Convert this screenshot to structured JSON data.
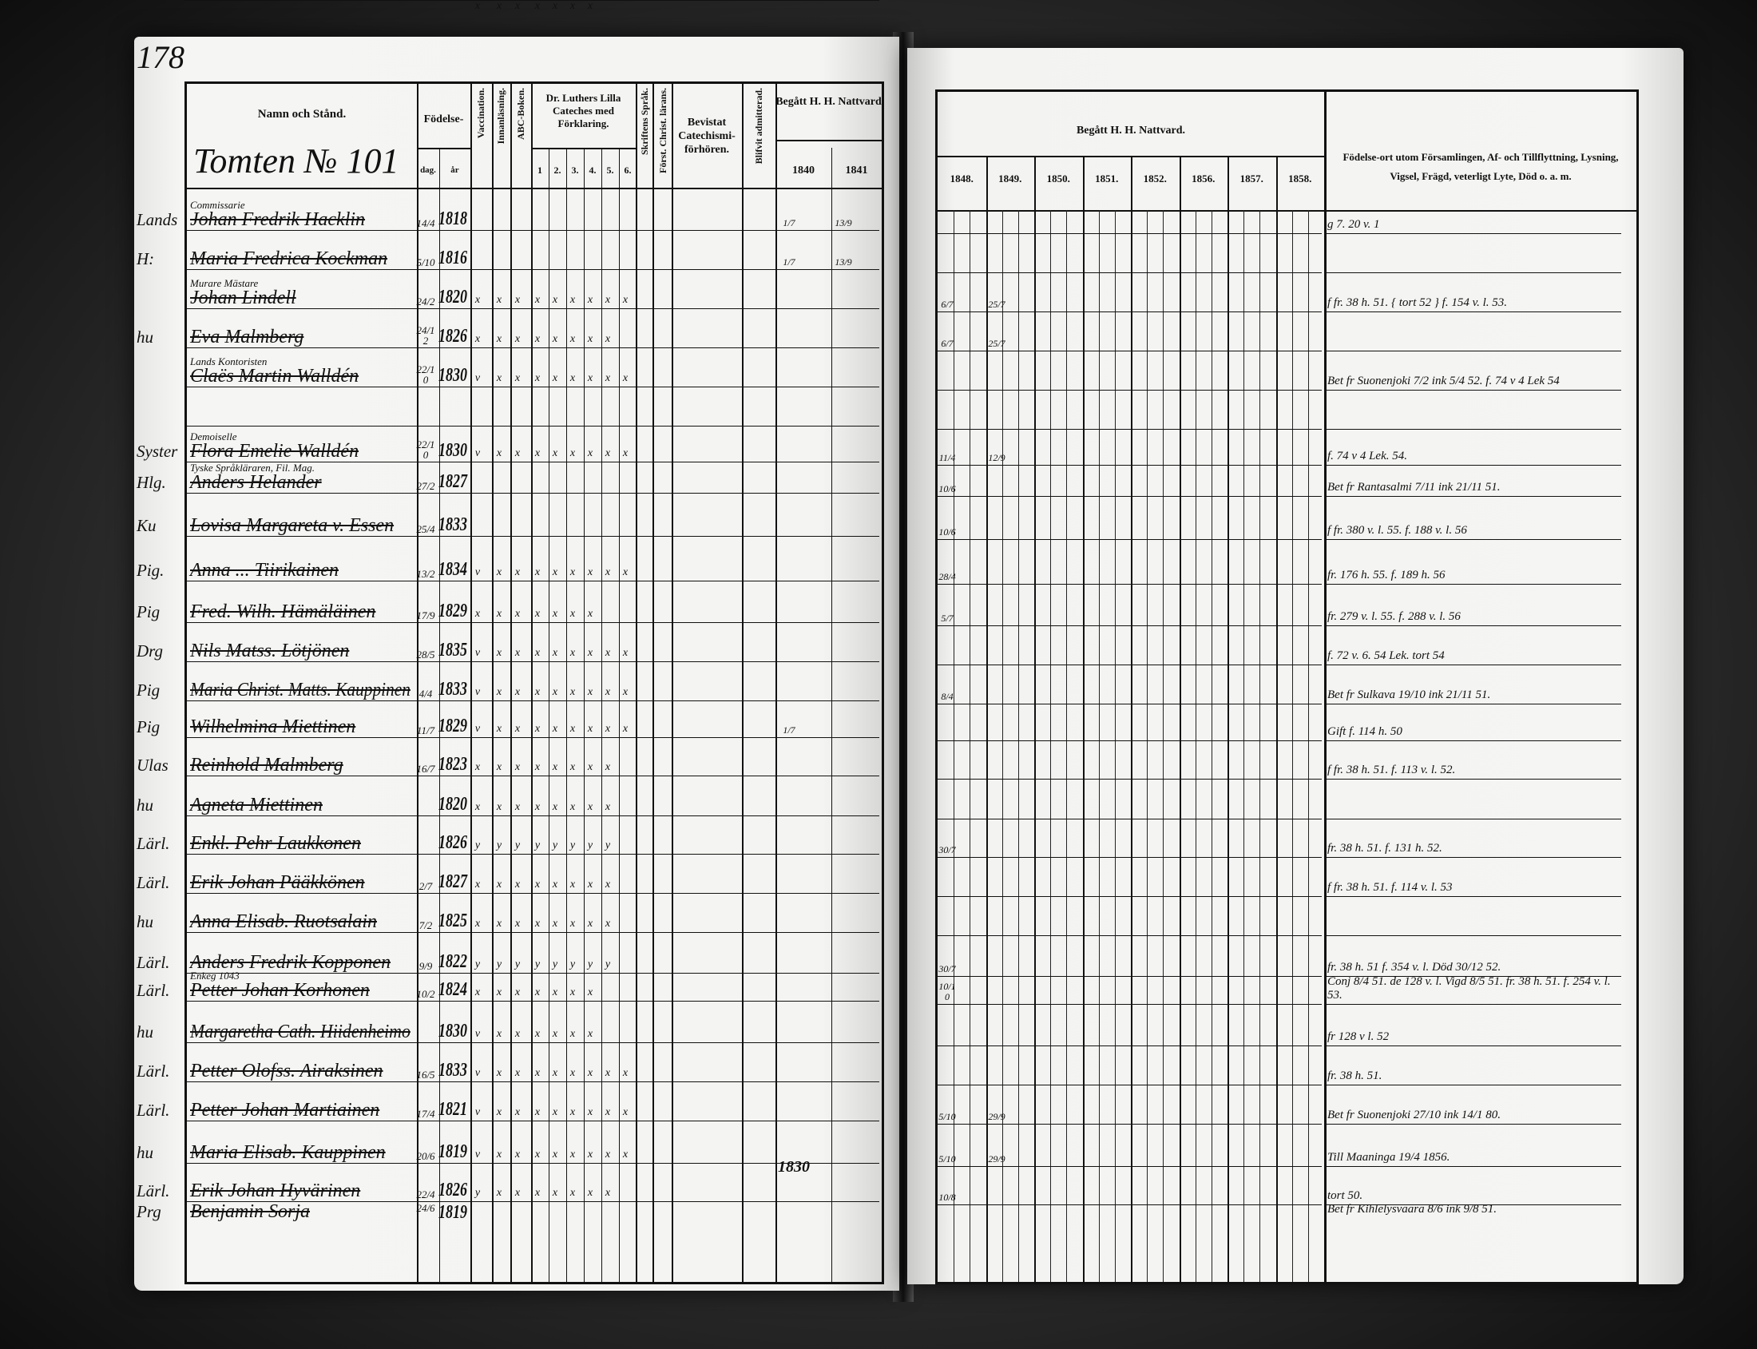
{
  "page_number": "178",
  "left_header": {
    "name_col": "Namn och Stånd.",
    "birth": "Födelse-",
    "birth_day": "dag.",
    "birth_year": "år",
    "vaccination": "Vaccination.",
    "reading": "Innanläsning.",
    "abc": "ABC-Boken.",
    "luther": "Dr. Luthers Lilla Cateches med Förklaring.",
    "luther_parts": [
      "1",
      "2.",
      "3.",
      "4.",
      "5.",
      "6."
    ],
    "scripture": "Skriftens Språk.",
    "christian": "Först. Christ. lärans.",
    "attended": "Bevistat Catechismi-förhören.",
    "admitted": "Blifvit admitterad.",
    "communion": "Begått H. H. Nattvard",
    "years": [
      "1840",
      "1841"
    ]
  },
  "right_header": {
    "communion": "Begått H. H. Nattvard.",
    "years": [
      "1848.",
      "1849.",
      "1850.",
      "1851.",
      "1852.",
      "1856.",
      "1857.",
      "1858."
    ],
    "remarks": "Födelse-ort utom Församlingen, Af- och Tillflyttning, Lysning, Vigsel, Frägd, veterligt Lyte, Död o. a. m."
  },
  "household": "Tomten № 101",
  "rows": [
    {
      "prefix": "Lands",
      "title": "Commissarie",
      "name": "Johan Fredrik Hacklin",
      "day": "14/4",
      "year": "1818",
      "marks": "",
      "comm_left": [
        "1/7",
        "13/9"
      ],
      "comm_right": [],
      "remark": "g 7. 20 v. 1"
    },
    {
      "prefix": "H:",
      "title": "",
      "name": "Maria Fredrica Kockman",
      "day": "5/10",
      "year": "1816",
      "marks": "",
      "comm_left": [
        "1/7",
        "13/9"
      ],
      "comm_right": [],
      "remark": ""
    },
    {
      "prefix": "",
      "title": "Murare Mästare",
      "name": "Johan Lindell",
      "day": "24/2",
      "year": "1820",
      "marks": "x x x x x x x x x",
      "comm_left": [],
      "comm_right": [
        "6/7",
        "25/7"
      ],
      "remark": "f fr. 38 h. 51. { tort 52 } f. 154 v. l. 53."
    },
    {
      "prefix": "hu",
      "title": "",
      "name": "Eva Malmberg",
      "day": "24/12",
      "year": "1826",
      "marks": "x x x x x x x x",
      "comm_left": [],
      "comm_right": [
        "6/7",
        "25/7"
      ],
      "remark": ""
    },
    {
      "prefix": "",
      "title": "Lands Kontoristen",
      "name": "Claës Martin Walldén",
      "day": "22/10",
      "year": "1830",
      "marks": "v x x x x x x x x",
      "comm_left": [],
      "comm_right": [],
      "remark": "Bet fr Suonenjoki 7/2 ink 5/4 52. f. 74 v 4 Lek 54"
    },
    {
      "prefix": "",
      "title": "",
      "name": "",
      "day": "",
      "year": "",
      "marks": "",
      "comm_left": [],
      "comm_right": [],
      "remark": ""
    },
    {
      "prefix": "Syster",
      "title": "Demoiselle",
      "name": "Flora Emelie Walldén",
      "day": "22/10",
      "year": "1830",
      "marks": "v x x x x x x x x",
      "comm_left": [],
      "comm_right": [
        "11/4",
        "12/9"
      ],
      "remark": "f. 74 v 4 Lek. 54."
    },
    {
      "prefix": "Hlg.",
      "title": "Tyske Språkläraren, Fil. Mag.",
      "name": "Anders Helander",
      "day": "27/2",
      "year": "1827",
      "marks": "",
      "comm_left": [],
      "comm_right": [
        "10/6"
      ],
      "remark": "Bet fr Rantasalmi 7/11 ink 21/11 51."
    },
    {
      "prefix": "Ku",
      "title": "",
      "name": "Lovisa Margareta v. Essen",
      "day": "25/4",
      "year": "1833",
      "marks": "",
      "comm_left": [],
      "comm_right": [
        "10/6"
      ],
      "remark": "f fr. 380 v. l. 55. f. 188 v. l. 56"
    },
    {
      "prefix": "Pig.",
      "title": "",
      "name": "Anna ... Tiirikainen",
      "day": "13/2",
      "year": "1834",
      "marks": "v x x x x x x x x",
      "comm_left": [],
      "comm_right": [
        "28/4"
      ],
      "remark": "fr. 176 h. 55. f. 189 h. 56"
    },
    {
      "prefix": "Pig",
      "title": "",
      "name": "Fred. Wilh. Hämäläinen",
      "day": "17/9",
      "year": "1829",
      "marks": "x x x x x x x",
      "comm_left": [],
      "comm_right": [
        "5/7"
      ],
      "remark": "fr. 279 v. l. 55. f. 288 v. l. 56"
    },
    {
      "prefix": "Drg",
      "title": "",
      "name": "Nils Matss. Lötjönen",
      "day": "28/5",
      "year": "1835",
      "marks": "v x x x x x x x x",
      "comm_left": [],
      "comm_right": [],
      "remark": "f. 72 v. 6. 54 Lek. tort 54"
    },
    {
      "prefix": "Pig",
      "title": "",
      "name": "Maria Christ. Matts. Kauppinen",
      "day": "4/4",
      "year": "1833",
      "marks": "v x x x x x x x x",
      "comm_left": [],
      "comm_right": [
        "8/4"
      ],
      "remark": "Bet fr Sulkava 19/10 ink 21/11 51."
    },
    {
      "prefix": "Pig",
      "title": "",
      "name": "Wilhelmina Miettinen",
      "day": "11/7",
      "year": "1829",
      "marks": "v x x x x x x x x",
      "comm_left": [
        "1/7"
      ],
      "comm_right": [],
      "remark": "Gift f. 114 h. 50"
    },
    {
      "prefix": "Ulas",
      "title": "",
      "name": "Reinhold Malmberg",
      "day": "16/7",
      "year": "1823",
      "marks": "x x x x x x x x",
      "comm_left": [],
      "comm_right": [],
      "remark": "f fr. 38 h. 51. f. 113 v. l. 52."
    },
    {
      "prefix": "hu",
      "title": "",
      "name": "Agneta Miettinen",
      "day": "",
      "year": "1820",
      "marks": "x x x x x x x x",
      "comm_left": [],
      "comm_right": [],
      "remark": ""
    },
    {
      "prefix": "Lärl.",
      "title": "",
      "name": "Enkl. Pehr Laukkonen",
      "day": "",
      "year": "1826",
      "marks": "y y y y y y y y",
      "comm_left": [],
      "comm_right": [
        "30/7"
      ],
      "remark": "fr. 38 h. 51. f. 131 h. 52."
    },
    {
      "prefix": "Lärl.",
      "title": "",
      "name": "Erik Johan Pääkkönen",
      "day": "2/7",
      "year": "1827",
      "marks": "x x x x x x x x",
      "comm_left": [],
      "comm_right": [],
      "remark": "f fr. 38 h. 51. f. 114 v. l. 53"
    },
    {
      "prefix": "hu",
      "title": "",
      "name": "Anna Elisab. Ruotsalain",
      "day": "7/2",
      "year": "1825",
      "marks": "x x x x x x x x",
      "comm_left": [],
      "comm_right": [],
      "remark": ""
    },
    {
      "prefix": "Lärl.",
      "title": "",
      "name": "Anders Fredrik Kopponen",
      "day": "9/9",
      "year": "1822",
      "marks": "y y y y y y y y",
      "comm_left": [],
      "comm_right": [
        "30/7"
      ],
      "remark": "fr. 38 h. 51 f. 354 v. l. Död 30/12 52."
    },
    {
      "prefix": "Lärl.",
      "title": "Enkeg 1043",
      "name": "Petter Johan Korhonen",
      "day": "10/2",
      "year": "1824",
      "marks": "x x x x x x x",
      "comm_left": [],
      "comm_right": [
        "10/10"
      ],
      "remark": "Conj 8/4 51. de 128 v. l. Vigd 8/5 51. fr. 38 h. 51. f. 254 v. l. 53."
    },
    {
      "prefix": "hu",
      "title": "",
      "name": "Margaretha Cath. Hiidenheimo",
      "day": "",
      "year": "1830",
      "marks": "v x x x x x x",
      "comm_left": [],
      "comm_right": [],
      "remark": "fr 128 v l. 52"
    },
    {
      "prefix": "Lärl.",
      "title": "",
      "name": "Petter Olofss. Airaksinen",
      "day": "16/5",
      "year": "1833",
      "marks": "v x x x x x x x x",
      "comm_left": [],
      "comm_right": [],
      "remark": "fr. 38 h. 51."
    },
    {
      "prefix": "Lärl.",
      "title": "",
      "name": "Petter Johan Martiainen",
      "day": "17/4",
      "year": "1821",
      "marks": "v x x x x x x x x",
      "comm_left": [],
      "comm_right": [
        "5/10",
        "29/9"
      ],
      "remark": "Bet fr Suonenjoki 27/10 ink 14/1 80."
    },
    {
      "prefix": "hu",
      "title": "",
      "name": "Maria Elisab. Kauppinen",
      "day": "20/6",
      "year": "1819",
      "marks": "v x x x x x x x x",
      "comm_left": [],
      "comm_right": [
        "5/10",
        "29/9"
      ],
      "remark": "Till Maaninga 19/4 1856."
    },
    {
      "prefix": "Lärl.",
      "title": "",
      "name": "Erik Johan Hyvärinen",
      "day": "22/4",
      "year": "1826",
      "marks": "y x x x x x x x",
      "comm_left": [],
      "comm_right": [
        "10/8"
      ],
      "remark": "tort 50."
    },
    {
      "prefix": "Prg",
      "title": "",
      "name": "Benjamin Sorja",
      "day": "24/6",
      "year": "1819",
      "marks": "x x x x x x x",
      "comm_left": [],
      "comm_right": [],
      "remark": "Bet fr Kihlelysvaara 8/6 ink 9/8 51."
    }
  ],
  "admitted_note": "1830",
  "colors": {
    "paper": "#f3f3f1",
    "ink": "#111111",
    "background": "#2b2b2b"
  }
}
